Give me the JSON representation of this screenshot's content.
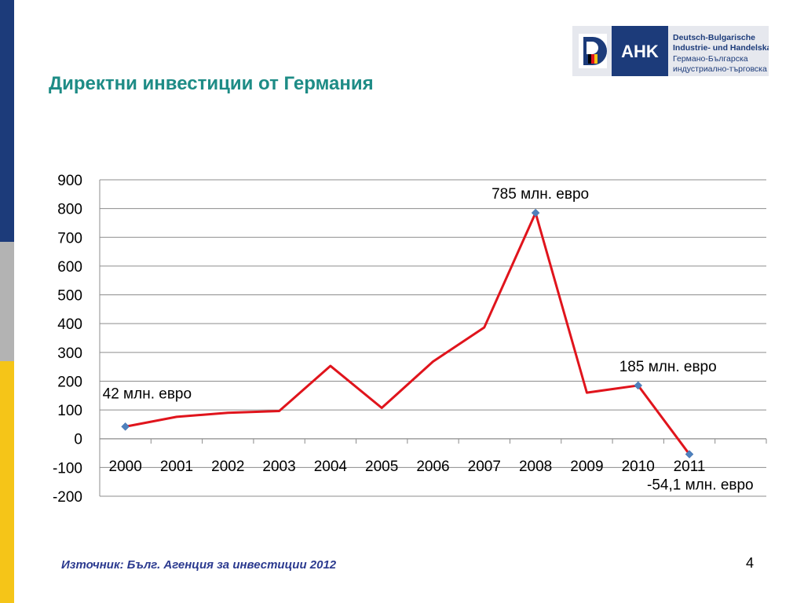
{
  "slide": {
    "title": "Директни инвестиции от Германия",
    "source": "Източник: Бълг. Агенция за инвестиции 2012",
    "page_number": "4"
  },
  "logo": {
    "mark": "AHK",
    "line1": "Deutsch-Bulgarische",
    "line2": "Industrie- und Handelskammer",
    "line3": "Германо-Българска",
    "line4": "индустриално-търговска камара",
    "brand_color": "#1c3b7a"
  },
  "side_bar": {
    "colors": [
      "#1c3b7a",
      "#b3b3b3",
      "#f5c518"
    ]
  },
  "chart_data": {
    "type": "line",
    "title": "",
    "xlabel": "",
    "ylabel": "",
    "categories": [
      "2000",
      "2001",
      "2002",
      "2003",
      "2004",
      "2005",
      "2006",
      "2007",
      "2008",
      "2009",
      "2010",
      "2011"
    ],
    "series": [
      {
        "values": [
          42,
          76,
          90,
          96,
          253,
          107,
          268,
          387,
          785,
          160,
          185,
          -54.1
        ],
        "color": "#e0141c"
      }
    ],
    "ylim": [
      -200,
      900
    ],
    "yticks": [
      -200,
      -100,
      0,
      100,
      200,
      300,
      400,
      500,
      600,
      700,
      800,
      900
    ],
    "grid": true,
    "marked_points": [
      0,
      8,
      10,
      11
    ],
    "marker_color": "#4f81bd",
    "annotations": [
      {
        "index": 0,
        "text": "42 млн. евро"
      },
      {
        "index": 8,
        "text": "785 млн. евро"
      },
      {
        "index": 10,
        "text": "185 млн. евро"
      },
      {
        "index": 11,
        "text": "-54,1 млн. евро"
      }
    ]
  }
}
